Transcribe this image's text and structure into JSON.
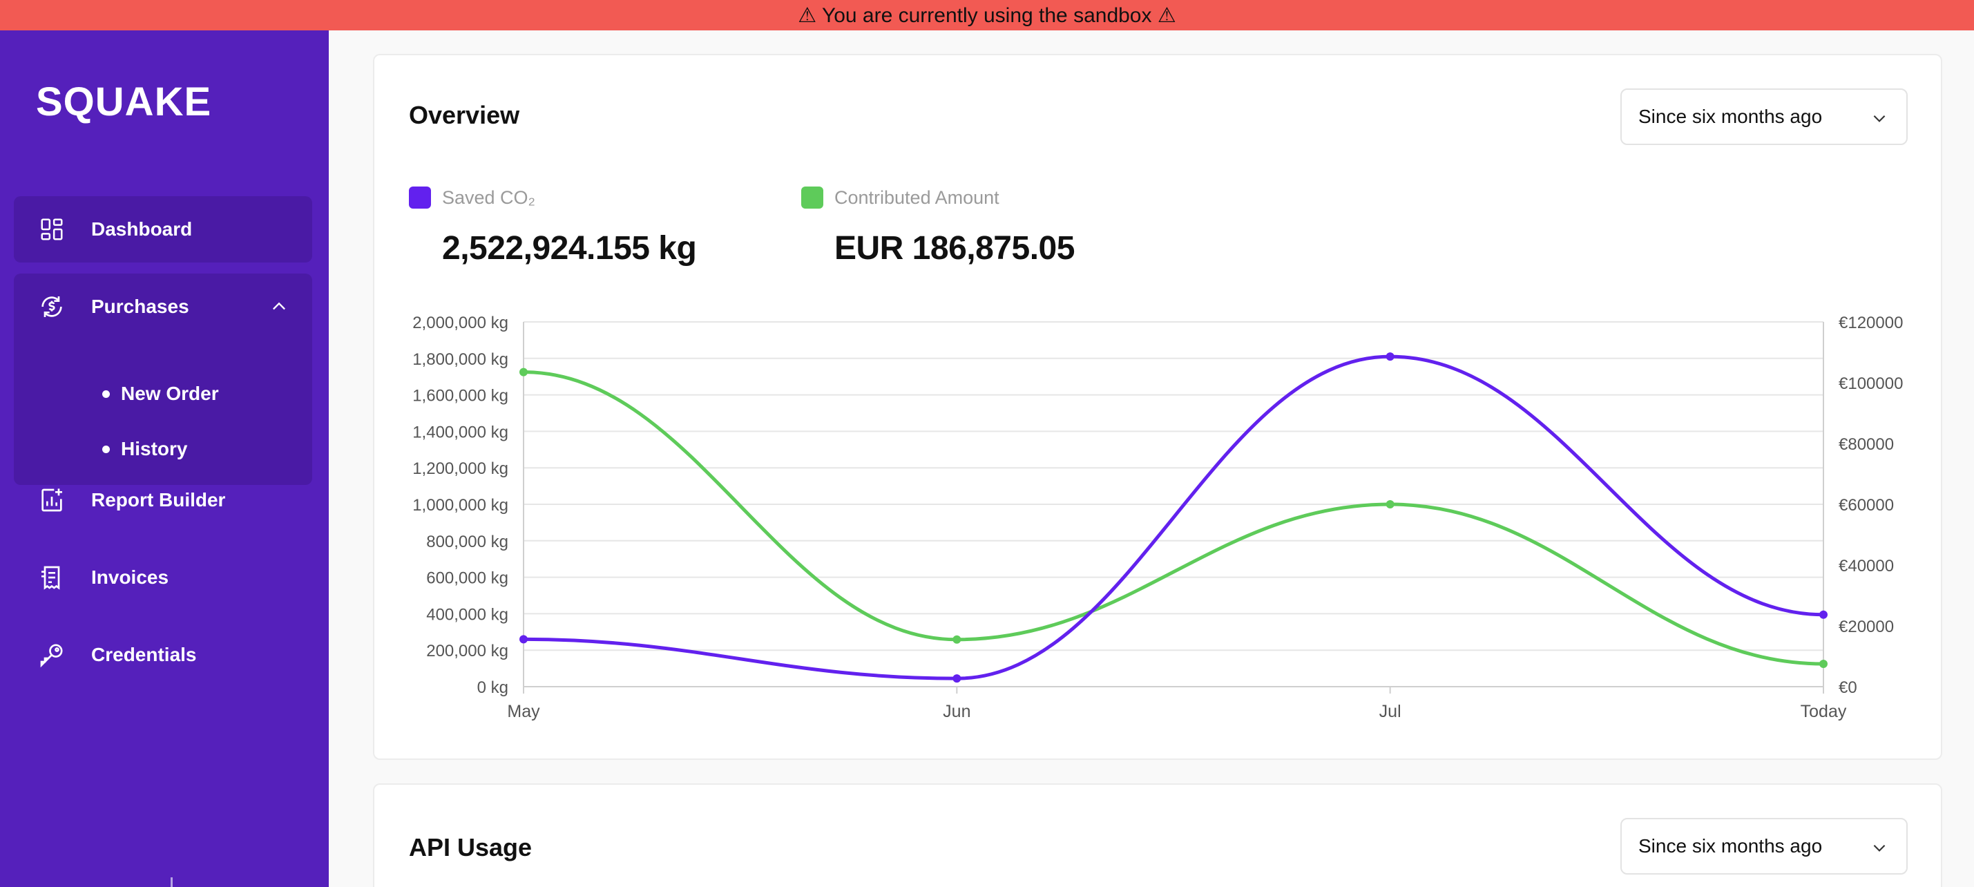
{
  "banner": {
    "text": "⚠ You are currently using the sandbox ⚠"
  },
  "sidebar": {
    "logo": "SQUAKE",
    "items": [
      {
        "label": "Dashboard",
        "icon": "dashboard-icon"
      },
      {
        "label": "Purchases",
        "icon": "purchases-icon",
        "expanded": true,
        "children": [
          {
            "label": "New Order"
          },
          {
            "label": "History"
          }
        ]
      },
      {
        "label": "Report Builder",
        "icon": "report-builder-icon"
      },
      {
        "label": "Invoices",
        "icon": "invoices-icon"
      },
      {
        "label": "Credentials",
        "icon": "key-icon"
      }
    ],
    "colors": {
      "background": "#5520bb",
      "active": "#4a1aa5"
    }
  },
  "overview": {
    "title": "Overview",
    "range_select": "Since six months ago",
    "stats": [
      {
        "label": "Saved CO₂",
        "value": "2,522,924.155 kg",
        "color": "#6221ee"
      },
      {
        "label": "Contributed Amount",
        "value": "EUR 186,875.05",
        "color": "#5ecb5a"
      }
    ]
  },
  "api_usage": {
    "title": "API Usage",
    "range_select": "Since six months ago"
  },
  "chart_data": {
    "type": "line",
    "categories": [
      "May",
      "Jun",
      "Jul",
      "Today"
    ],
    "series": [
      {
        "name": "Saved CO₂",
        "axis": "left",
        "color": "#6221ee",
        "values": [
          260000,
          45000,
          1810000,
          395000
        ]
      },
      {
        "name": "Contributed Amount",
        "axis": "right",
        "color": "#5ecb5a",
        "values": [
          103500,
          15500,
          60000,
          7500
        ]
      }
    ],
    "y_left": {
      "ylim": [
        0,
        2000000
      ],
      "ticks": [
        "0 kg",
        "200,000 kg",
        "400,000 kg",
        "600,000 kg",
        "800,000 kg",
        "1,000,000 kg",
        "1,200,000 kg",
        "1,400,000 kg",
        "1,600,000 kg",
        "1,800,000 kg",
        "2,000,000 kg"
      ]
    },
    "y_right": {
      "ylim": [
        0,
        120000
      ],
      "ticks": [
        "€0",
        "€20000",
        "€40000",
        "€60000",
        "€80000",
        "€100000",
        "€120000"
      ]
    },
    "grid": true
  }
}
